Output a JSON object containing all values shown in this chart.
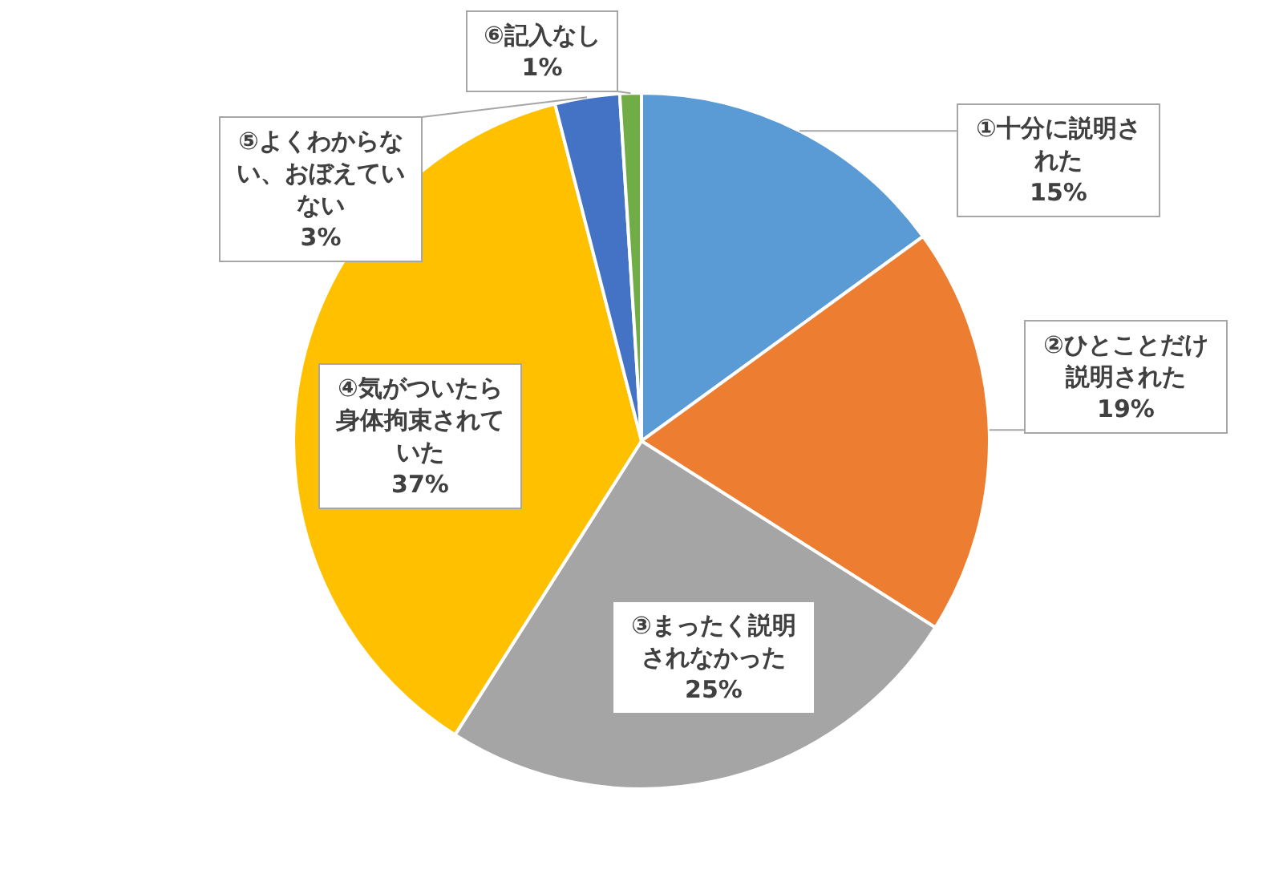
{
  "chart_data": {
    "type": "pie",
    "categories": [
      "①十分に説明された",
      "②ひとことだけ説明された",
      "③まったく説明されなかった",
      "④気がついたら身体拘束されていた",
      "⑤よくわからない、おぼえていない",
      "⑥記入なし"
    ],
    "values": [
      15,
      19,
      25,
      37,
      3,
      1
    ],
    "value_labels": [
      "15%",
      "19%",
      "25%",
      "37%",
      "3%",
      "1%"
    ],
    "colors": [
      "#5b9bd5",
      "#ed7d31",
      "#a5a5a5",
      "#ffc000",
      "#4472c4",
      "#70ad47"
    ]
  }
}
